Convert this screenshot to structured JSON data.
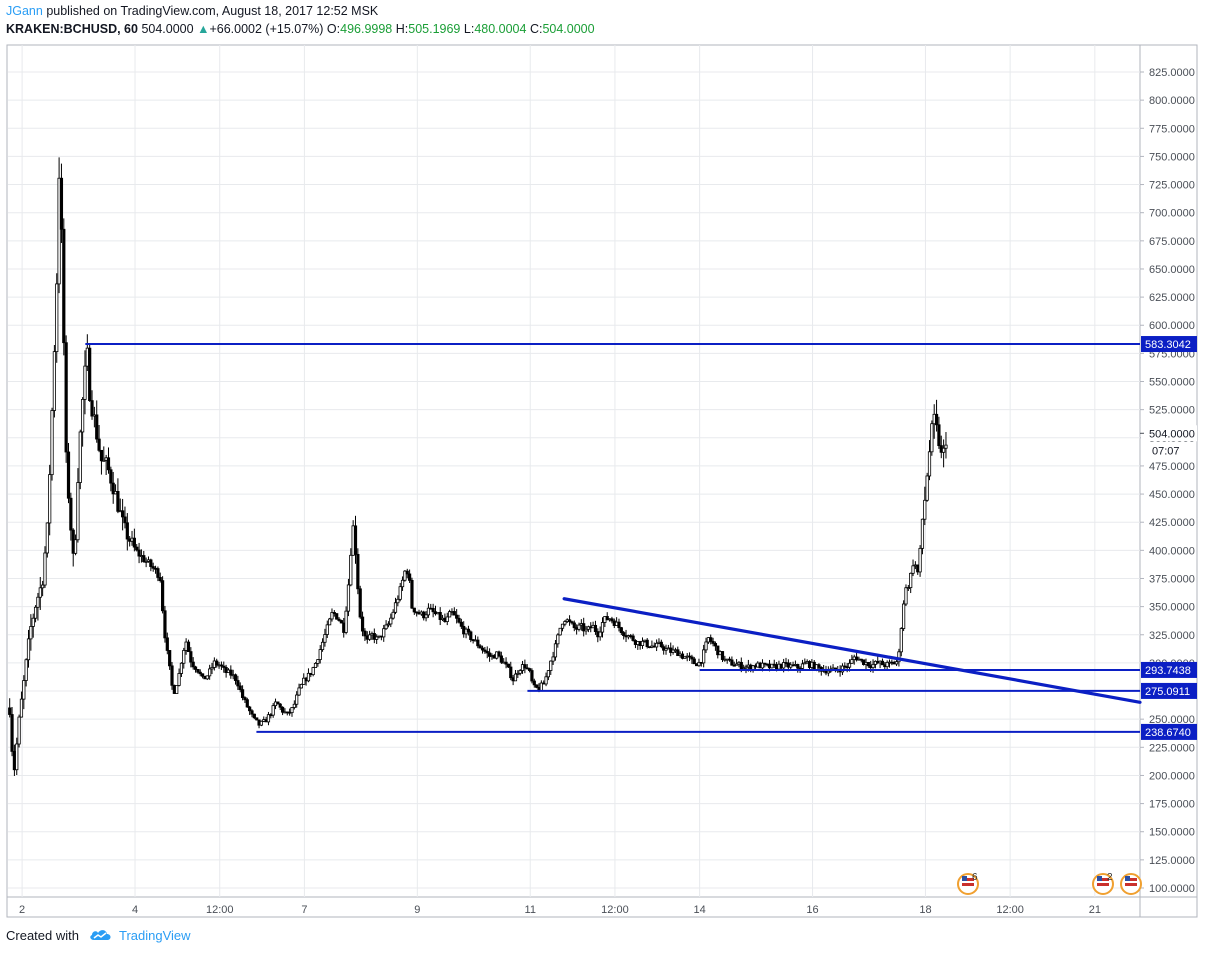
{
  "header": {
    "author": "JGann",
    "published_text": "published on TradingView.com, August 18, 2017 12:52 MSK",
    "symbol": "KRAKEN:BCHUSD, 60",
    "last": "504.0000",
    "change": "+66.0002 (+15.07%)",
    "o_label": "O:",
    "o_value": "496.9998",
    "h_label": "H:",
    "h_value": "505.1969",
    "l_label": "L:",
    "l_value": "480.0004",
    "c_label": "C:",
    "c_value": "504.0000"
  },
  "footer": {
    "created_with": "Created with",
    "brand": "TradingView"
  },
  "colors": {
    "line": "#0b1fc4",
    "candle": "#000000",
    "grid": "#e8eaed",
    "axis_text": "#4a4f57",
    "label_bg": "#0b1fc4"
  },
  "events": [
    {
      "count": "6"
    },
    {
      "count": "2"
    },
    {
      "count": ""
    }
  ],
  "chart_data": {
    "type": "candlestick",
    "ylim": [
      85,
      845
    ],
    "y_ticks": [
      "100.0000",
      "125.0000",
      "150.0000",
      "175.0000",
      "200.0000",
      "225.0000",
      "250.0000",
      "275.0000",
      "300.0000",
      "325.0000",
      "350.0000",
      "375.0000",
      "400.0000",
      "425.0000",
      "450.0000",
      "475.0000",
      "500.0000",
      "525.0000",
      "550.0000",
      "575.0000",
      "600.0000",
      "625.0000",
      "650.0000",
      "675.0000",
      "700.0000",
      "725.0000",
      "750.0000",
      "775.0000",
      "800.0000",
      "825.0000"
    ],
    "x_ticks": [
      {
        "label": "2",
        "day": 2
      },
      {
        "label": "4",
        "day": 4
      },
      {
        "label": "12:00",
        "day": 5.5
      },
      {
        "label": "7",
        "day": 7
      },
      {
        "label": "9",
        "day": 9
      },
      {
        "label": "11",
        "day": 11
      },
      {
        "label": "12:00",
        "day": 12.5
      },
      {
        "label": "14",
        "day": 14
      },
      {
        "label": "16",
        "day": 16
      },
      {
        "label": "18",
        "day": 18
      },
      {
        "label": "12:00",
        "day": 19.5
      },
      {
        "label": "21",
        "day": 21
      }
    ],
    "xlim_days": [
      1.75,
      21.8
    ],
    "price_path": [
      [
        1.78,
        260
      ],
      [
        1.85,
        200
      ],
      [
        1.95,
        250
      ],
      [
        2.05,
        290
      ],
      [
        2.15,
        330
      ],
      [
        2.25,
        355
      ],
      [
        2.35,
        370
      ],
      [
        2.45,
        420
      ],
      [
        2.55,
        550
      ],
      [
        2.62,
        650
      ],
      [
        2.66,
        750
      ],
      [
        2.72,
        630
      ],
      [
        2.78,
        480
      ],
      [
        2.85,
        430
      ],
      [
        2.92,
        380
      ],
      [
        2.98,
        460
      ],
      [
        3.05,
        520
      ],
      [
        3.12,
        560
      ],
      [
        3.15,
        575
      ],
      [
        3.2,
        540
      ],
      [
        3.3,
        510
      ],
      [
        3.4,
        480
      ],
      [
        3.5,
        475
      ],
      [
        3.6,
        460
      ],
      [
        3.7,
        440
      ],
      [
        3.8,
        420
      ],
      [
        3.9,
        410
      ],
      [
        4.0,
        400
      ],
      [
        4.1,
        395
      ],
      [
        4.2,
        390
      ],
      [
        4.3,
        385
      ],
      [
        4.4,
        380
      ],
      [
        4.45,
        375
      ],
      [
        4.5,
        340
      ],
      [
        4.55,
        315
      ],
      [
        4.6,
        300
      ],
      [
        4.65,
        280
      ],
      [
        4.7,
        275
      ],
      [
        4.78,
        290
      ],
      [
        4.85,
        310
      ],
      [
        4.9,
        320
      ],
      [
        4.95,
        310
      ],
      [
        5.0,
        300
      ],
      [
        5.1,
        295
      ],
      [
        5.2,
        285
      ],
      [
        5.3,
        290
      ],
      [
        5.4,
        300
      ],
      [
        5.5,
        298
      ],
      [
        5.6,
        292
      ],
      [
        5.7,
        290
      ],
      [
        5.8,
        285
      ],
      [
        5.9,
        270
      ],
      [
        6.0,
        260
      ],
      [
        6.1,
        250
      ],
      [
        6.2,
        245
      ],
      [
        6.3,
        248
      ],
      [
        6.4,
        255
      ],
      [
        6.5,
        265
      ],
      [
        6.6,
        258
      ],
      [
        6.7,
        254
      ],
      [
        6.8,
        260
      ],
      [
        6.9,
        275
      ],
      [
        7.0,
        285
      ],
      [
        7.1,
        290
      ],
      [
        7.2,
        300
      ],
      [
        7.3,
        315
      ],
      [
        7.4,
        330
      ],
      [
        7.5,
        345
      ],
      [
        7.6,
        340
      ],
      [
        7.7,
        330
      ],
      [
        7.75,
        355
      ],
      [
        7.8,
        380
      ],
      [
        7.85,
        425
      ],
      [
        7.9,
        405
      ],
      [
        7.95,
        365
      ],
      [
        8.0,
        335
      ],
      [
        8.1,
        318
      ],
      [
        8.2,
        325
      ],
      [
        8.3,
        320
      ],
      [
        8.4,
        328
      ],
      [
        8.5,
        335
      ],
      [
        8.6,
        350
      ],
      [
        8.7,
        365
      ],
      [
        8.8,
        385
      ],
      [
        8.85,
        378
      ],
      [
        8.9,
        350
      ],
      [
        9.0,
        345
      ],
      [
        9.1,
        342
      ],
      [
        9.2,
        347
      ],
      [
        9.3,
        344
      ],
      [
        9.4,
        340
      ],
      [
        9.5,
        336
      ],
      [
        9.6,
        345
      ],
      [
        9.7,
        338
      ],
      [
        9.8,
        330
      ],
      [
        9.9,
        325
      ],
      [
        10.0,
        320
      ],
      [
        10.1,
        315
      ],
      [
        10.2,
        310
      ],
      [
        10.3,
        305
      ],
      [
        10.4,
        308
      ],
      [
        10.5,
        302
      ],
      [
        10.6,
        295
      ],
      [
        10.7,
        285
      ],
      [
        10.8,
        295
      ],
      [
        10.9,
        298
      ],
      [
        11.0,
        290
      ],
      [
        11.05,
        278
      ],
      [
        11.15,
        277
      ],
      [
        11.25,
        282
      ],
      [
        11.35,
        300
      ],
      [
        11.45,
        315
      ],
      [
        11.55,
        335
      ],
      [
        11.6,
        340
      ],
      [
        11.7,
        335
      ],
      [
        11.8,
        330
      ],
      [
        11.9,
        332
      ],
      [
        12.0,
        328
      ],
      [
        12.1,
        333
      ],
      [
        12.2,
        326
      ],
      [
        12.3,
        338
      ],
      [
        12.4,
        340
      ],
      [
        12.5,
        336
      ],
      [
        12.6,
        330
      ],
      [
        12.7,
        325
      ],
      [
        12.8,
        322
      ],
      [
        12.9,
        318
      ],
      [
        13.0,
        318
      ],
      [
        13.1,
        316
      ],
      [
        13.2,
        314
      ],
      [
        13.3,
        316
      ],
      [
        13.4,
        312
      ],
      [
        13.5,
        310
      ],
      [
        13.6,
        310
      ],
      [
        13.7,
        306
      ],
      [
        13.8,
        304
      ],
      [
        13.9,
        300
      ],
      [
        14.0,
        300
      ],
      [
        14.05,
        305
      ],
      [
        14.15,
        322
      ],
      [
        14.25,
        316
      ],
      [
        14.35,
        308
      ],
      [
        14.45,
        302
      ],
      [
        14.55,
        300
      ],
      [
        14.7,
        298
      ],
      [
        14.85,
        296
      ],
      [
        15.0,
        298
      ],
      [
        15.15,
        297
      ],
      [
        15.3,
        296
      ],
      [
        15.45,
        298
      ],
      [
        15.6,
        297
      ],
      [
        15.75,
        296
      ],
      [
        15.9,
        300
      ],
      [
        16.05,
        296
      ],
      [
        16.2,
        294
      ],
      [
        16.35,
        293
      ],
      [
        16.5,
        295
      ],
      [
        16.65,
        298
      ],
      [
        16.75,
        306
      ],
      [
        16.85,
        302
      ],
      [
        16.95,
        300
      ],
      [
        17.05,
        298
      ],
      [
        17.15,
        300
      ],
      [
        17.3,
        298
      ],
      [
        17.45,
        300
      ],
      [
        17.52,
        302
      ],
      [
        17.55,
        320
      ],
      [
        17.6,
        350
      ],
      [
        17.65,
        365
      ],
      [
        17.7,
        370
      ],
      [
        17.75,
        380
      ],
      [
        17.8,
        395
      ],
      [
        17.85,
        375
      ],
      [
        17.9,
        395
      ],
      [
        17.95,
        430
      ],
      [
        18.0,
        450
      ],
      [
        18.05,
        480
      ],
      [
        18.1,
        500
      ],
      [
        18.15,
        515
      ],
      [
        18.2,
        505
      ],
      [
        18.25,
        495
      ],
      [
        18.3,
        475
      ],
      [
        18.33,
        490
      ],
      [
        18.35,
        500
      ],
      [
        18.4,
        504
      ]
    ],
    "hlines": [
      {
        "price": 583.3042,
        "label": "583.3042",
        "x_start_day": 3.12
      },
      {
        "price": 293.7438,
        "label": "293.7438",
        "x_start_day": 14.0
      },
      {
        "price": 275.0911,
        "label": "275.0911",
        "x_start_day": 10.95
      },
      {
        "price": 238.674,
        "label": "238.6740",
        "x_start_day": 6.15
      }
    ],
    "trendline": {
      "from": {
        "day": 11.6,
        "price": 357
      },
      "to": {
        "day": 21.8,
        "price": 265
      }
    },
    "last_price": {
      "label": "504.0000",
      "countdown": "07:07",
      "price": 504.0
    }
  }
}
